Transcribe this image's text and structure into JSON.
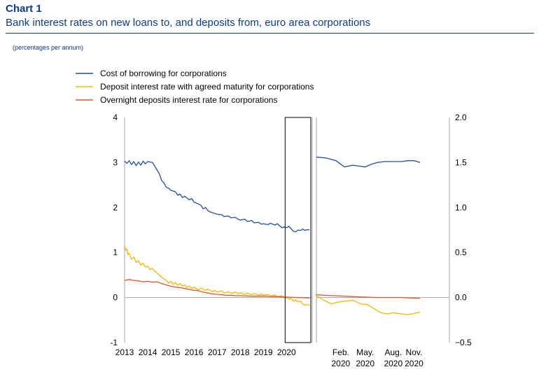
{
  "header": {
    "chart_label": "Chart 1",
    "title": "Bank interest rates on new loans to, and deposits from, euro area corporations",
    "units": "(percentages per annum)"
  },
  "colors": {
    "borrowing": "#1f4fa8",
    "deposit_agreed": "#f5b800",
    "overnight": "#e8552a",
    "axis": "#a6a6a6",
    "text": "#000000"
  },
  "chart_data": [
    {
      "type": "line",
      "panel": "left",
      "x_axis": "year",
      "xlim": [
        2013,
        2021.05
      ],
      "ylim": [
        -1,
        4
      ],
      "yticks": [
        -1,
        0,
        1,
        2,
        3,
        4
      ],
      "xticks": [
        "2013",
        "2014",
        "2015",
        "2016",
        "2017",
        "2018",
        "2019",
        "2020"
      ],
      "grid": false,
      "zero_line": true,
      "legend_position": "top-left",
      "highlight_box": [
        2020,
        2021.05
      ],
      "series": [
        {
          "name": "Cost of borrowing for corporations",
          "color_key": "borrowing",
          "points": [
            [
              2013.0,
              3.03
            ],
            [
              2013.1,
              2.98
            ],
            [
              2013.2,
              3.04
            ],
            [
              2013.3,
              2.95
            ],
            [
              2013.4,
              3.02
            ],
            [
              2013.5,
              2.93
            ],
            [
              2013.6,
              3.01
            ],
            [
              2013.7,
              2.94
            ],
            [
              2013.8,
              3.03
            ],
            [
              2013.9,
              2.97
            ],
            [
              2014.0,
              3.02
            ],
            [
              2014.2,
              3.0
            ],
            [
              2014.3,
              2.92
            ],
            [
              2014.5,
              2.75
            ],
            [
              2014.6,
              2.6
            ],
            [
              2014.7,
              2.55
            ],
            [
              2014.8,
              2.45
            ],
            [
              2014.9,
              2.43
            ],
            [
              2015.0,
              2.38
            ],
            [
              2015.2,
              2.35
            ],
            [
              2015.3,
              2.27
            ],
            [
              2015.4,
              2.3
            ],
            [
              2015.5,
              2.22
            ],
            [
              2015.6,
              2.25
            ],
            [
              2015.8,
              2.17
            ],
            [
              2015.9,
              2.2
            ],
            [
              2016.0,
              2.12
            ],
            [
              2016.1,
              2.1
            ],
            [
              2016.3,
              2.05
            ],
            [
              2016.4,
              1.97
            ],
            [
              2016.5,
              2.0
            ],
            [
              2016.6,
              1.93
            ],
            [
              2016.7,
              1.9
            ],
            [
              2016.9,
              1.87
            ],
            [
              2017.0,
              1.85
            ],
            [
              2017.2,
              1.84
            ],
            [
              2017.3,
              1.8
            ],
            [
              2017.5,
              1.81
            ],
            [
              2017.6,
              1.77
            ],
            [
              2017.8,
              1.78
            ],
            [
              2017.9,
              1.74
            ],
            [
              2018.0,
              1.72
            ],
            [
              2018.2,
              1.74
            ],
            [
              2018.3,
              1.69
            ],
            [
              2018.5,
              1.71
            ],
            [
              2018.6,
              1.66
            ],
            [
              2018.8,
              1.67
            ],
            [
              2018.9,
              1.63
            ],
            [
              2019.0,
              1.64
            ],
            [
              2019.2,
              1.62
            ],
            [
              2019.3,
              1.65
            ],
            [
              2019.5,
              1.61
            ],
            [
              2019.6,
              1.64
            ],
            [
              2019.8,
              1.55
            ],
            [
              2019.9,
              1.57
            ],
            [
              2020.0,
              1.55
            ],
            [
              2020.1,
              1.58
            ],
            [
              2020.2,
              1.53
            ],
            [
              2020.3,
              1.47
            ],
            [
              2020.4,
              1.46
            ],
            [
              2020.5,
              1.5
            ],
            [
              2020.6,
              1.49
            ],
            [
              2020.7,
              1.52
            ],
            [
              2020.8,
              1.49
            ],
            [
              2020.9,
              1.51
            ],
            [
              2021.0,
              1.5
            ]
          ]
        },
        {
          "name": "Deposit interest rate with agreed maturity for corporations",
          "color_key": "deposit_agreed",
          "points": [
            [
              2013.0,
              1.15
            ],
            [
              2013.05,
              1.05
            ],
            [
              2013.1,
              1.08
            ],
            [
              2013.15,
              0.95
            ],
            [
              2013.2,
              0.98
            ],
            [
              2013.3,
              0.85
            ],
            [
              2013.4,
              0.9
            ],
            [
              2013.5,
              0.78
            ],
            [
              2013.6,
              0.82
            ],
            [
              2013.7,
              0.72
            ],
            [
              2013.8,
              0.76
            ],
            [
              2013.9,
              0.68
            ],
            [
              2014.0,
              0.7
            ],
            [
              2014.1,
              0.62
            ],
            [
              2014.2,
              0.65
            ],
            [
              2014.3,
              0.58
            ],
            [
              2014.4,
              0.55
            ],
            [
              2014.5,
              0.5
            ],
            [
              2014.6,
              0.45
            ],
            [
              2014.7,
              0.42
            ],
            [
              2014.8,
              0.38
            ],
            [
              2014.9,
              0.32
            ],
            [
              2015.0,
              0.36
            ],
            [
              2015.1,
              0.3
            ],
            [
              2015.2,
              0.33
            ],
            [
              2015.3,
              0.27
            ],
            [
              2015.4,
              0.31
            ],
            [
              2015.5,
              0.25
            ],
            [
              2015.6,
              0.28
            ],
            [
              2015.7,
              0.22
            ],
            [
              2015.8,
              0.26
            ],
            [
              2015.9,
              0.2
            ],
            [
              2016.0,
              0.23
            ],
            [
              2016.2,
              0.17
            ],
            [
              2016.3,
              0.21
            ],
            [
              2016.5,
              0.16
            ],
            [
              2016.6,
              0.19
            ],
            [
              2016.8,
              0.13
            ],
            [
              2016.9,
              0.16
            ],
            [
              2017.0,
              0.12
            ],
            [
              2017.2,
              0.15
            ],
            [
              2017.3,
              0.1
            ],
            [
              2017.5,
              0.13
            ],
            [
              2017.6,
              0.09
            ],
            [
              2017.8,
              0.12
            ],
            [
              2017.9,
              0.08
            ],
            [
              2018.0,
              0.11
            ],
            [
              2018.2,
              0.07
            ],
            [
              2018.3,
              0.1
            ],
            [
              2018.5,
              0.06
            ],
            [
              2018.6,
              0.09
            ],
            [
              2018.8,
              0.05
            ],
            [
              2018.9,
              0.08
            ],
            [
              2019.0,
              0.05
            ],
            [
              2019.2,
              0.07
            ],
            [
              2019.3,
              0.03
            ],
            [
              2019.5,
              0.06
            ],
            [
              2019.6,
              0.02
            ],
            [
              2019.8,
              0.04
            ],
            [
              2019.9,
              -0.01
            ],
            [
              2020.0,
              0.02
            ],
            [
              2020.1,
              -0.04
            ],
            [
              2020.2,
              -0.02
            ],
            [
              2020.3,
              -0.08
            ],
            [
              2020.4,
              -0.05
            ],
            [
              2020.5,
              -0.1
            ],
            [
              2020.6,
              -0.08
            ],
            [
              2020.7,
              -0.14
            ],
            [
              2020.8,
              -0.17
            ],
            [
              2020.9,
              -0.15
            ],
            [
              2021.0,
              -0.18
            ]
          ]
        },
        {
          "name": "Overnight deposits interest rate for corporations",
          "color_key": "overnight",
          "points": [
            [
              2013.0,
              0.38
            ],
            [
              2013.2,
              0.4
            ],
            [
              2013.4,
              0.38
            ],
            [
              2013.6,
              0.37
            ],
            [
              2013.8,
              0.35
            ],
            [
              2014.0,
              0.36
            ],
            [
              2014.2,
              0.34
            ],
            [
              2014.4,
              0.35
            ],
            [
              2014.6,
              0.31
            ],
            [
              2014.8,
              0.28
            ],
            [
              2015.0,
              0.25
            ],
            [
              2015.2,
              0.23
            ],
            [
              2015.4,
              0.22
            ],
            [
              2015.6,
              0.2
            ],
            [
              2015.8,
              0.18
            ],
            [
              2016.0,
              0.16
            ],
            [
              2016.2,
              0.15
            ],
            [
              2016.4,
              0.12
            ],
            [
              2016.6,
              0.1
            ],
            [
              2016.8,
              0.08
            ],
            [
              2017.0,
              0.07
            ],
            [
              2017.2,
              0.06
            ],
            [
              2017.4,
              0.05
            ],
            [
              2017.6,
              0.05
            ],
            [
              2017.8,
              0.04
            ],
            [
              2018.0,
              0.04
            ],
            [
              2018.5,
              0.03
            ],
            [
              2019.0,
              0.03
            ],
            [
              2019.5,
              0.02
            ],
            [
              2020.0,
              0.01
            ],
            [
              2020.5,
              0.0
            ],
            [
              2021.0,
              -0.01
            ]
          ]
        }
      ]
    },
    {
      "type": "line",
      "panel": "right",
      "x_axis": "month",
      "xlim": [
        0,
        10.9
      ],
      "ylim": [
        -0.5,
        2.0
      ],
      "yticks": [
        -0.5,
        0.0,
        0.5,
        1.0,
        1.5,
        2.0
      ],
      "ytick_labels": [
        "−0.5",
        "0.0",
        "0.5",
        "1.0",
        "1.5",
        "2.0"
      ],
      "xticks": [
        {
          "pos": 2,
          "line1": "Feb.",
          "line2": "2020"
        },
        {
          "pos": 4,
          "line1": "May.",
          "line2": "2020"
        },
        {
          "pos": 6.3,
          "line1": "Aug.",
          "line2": "2020"
        },
        {
          "pos": 8,
          "line1": "Nov.",
          "line2": "2020"
        }
      ],
      "grid": false,
      "zero_line": true,
      "series": [
        {
          "name": "Cost of borrowing for corporations",
          "color_key": "borrowing",
          "points": [
            [
              0,
              1.56
            ],
            [
              0.8,
              1.55
            ],
            [
              1.6,
              1.52
            ],
            [
              2.3,
              1.45
            ],
            [
              3.0,
              1.47
            ],
            [
              3.5,
              1.46
            ],
            [
              4.0,
              1.45
            ],
            [
              4.5,
              1.48
            ],
            [
              5.0,
              1.5
            ],
            [
              5.6,
              1.51
            ],
            [
              6.3,
              1.51
            ],
            [
              7.0,
              1.51
            ],
            [
              7.5,
              1.52
            ],
            [
              8.0,
              1.52
            ],
            [
              8.5,
              1.5
            ]
          ]
        },
        {
          "name": "Deposit interest rate with agreed maturity for corporations",
          "color_key": "deposit_agreed",
          "points": [
            [
              0,
              0.02
            ],
            [
              0.6,
              -0.03
            ],
            [
              1.2,
              -0.07
            ],
            [
              1.8,
              -0.05
            ],
            [
              2.4,
              -0.04
            ],
            [
              3.0,
              -0.03
            ],
            [
              3.6,
              -0.07
            ],
            [
              4.2,
              -0.08
            ],
            [
              4.8,
              -0.13
            ],
            [
              5.3,
              -0.17
            ],
            [
              5.8,
              -0.18
            ],
            [
              6.3,
              -0.17
            ],
            [
              6.9,
              -0.18
            ],
            [
              7.4,
              -0.19
            ],
            [
              7.9,
              -0.18
            ],
            [
              8.5,
              -0.16
            ]
          ]
        },
        {
          "name": "Overnight deposits interest rate for corporations",
          "color_key": "overnight",
          "points": [
            [
              0,
              0.03
            ],
            [
              1.5,
              0.02
            ],
            [
              3.0,
              0.01
            ],
            [
              5.0,
              0.0
            ],
            [
              7.0,
              0.0
            ],
            [
              8.5,
              -0.01
            ]
          ]
        }
      ]
    }
  ]
}
